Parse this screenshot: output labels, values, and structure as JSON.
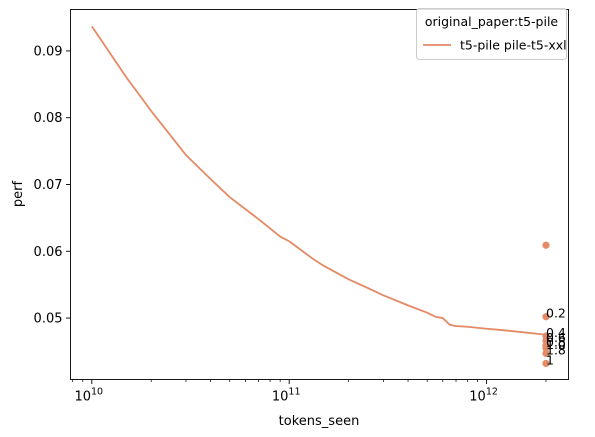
{
  "chart_data": {
    "type": "line",
    "xlabel": "tokens_seen",
    "ylabel": "perf",
    "x_scale": "log",
    "xlim": [
      7800000000.0,
      2600000000000.0
    ],
    "ylim": [
      0.0408,
      0.0962
    ],
    "x_ticks": [
      {
        "value": 10000000000.0,
        "label": "10",
        "exp": "10"
      },
      {
        "value": 100000000000.0,
        "label": "10",
        "exp": "11"
      },
      {
        "value": 1000000000000.0,
        "label": "10",
        "exp": "12"
      }
    ],
    "y_ticks": [
      {
        "value": 0.05,
        "label": "0.05"
      },
      {
        "value": 0.06,
        "label": "0.06"
      },
      {
        "value": 0.07,
        "label": "0.07"
      },
      {
        "value": 0.08,
        "label": "0.08"
      },
      {
        "value": 0.09,
        "label": "0.09"
      }
    ],
    "grid": false,
    "legend": {
      "title": "original_paper:t5-pile",
      "placement": "top-right",
      "entries": [
        {
          "name": "t5-pile pile-t5-xxl",
          "color": "#e48a65"
        }
      ]
    },
    "series": [
      {
        "name": "t5-pile pile-t5-xxl",
        "color": "#e48a65",
        "x": [
          10000000000.0,
          15000000000.0,
          20000000000.0,
          30000000000.0,
          40000000000.0,
          50000000000.0,
          70000000000.0,
          90000000000.0,
          100000000000.0,
          130000000000.0,
          150000000000.0,
          200000000000.0,
          250000000000.0,
          300000000000.0,
          400000000000.0,
          500000000000.0,
          550000000000.0,
          600000000000.0,
          650000000000.0,
          700000000000.0,
          800000000000.0,
          1000000000000.0,
          1200000000000.0,
          1500000000000.0,
          2000000000000.0
        ],
        "y": [
          0.0937,
          0.086,
          0.081,
          0.0744,
          0.0708,
          0.0681,
          0.0648,
          0.0622,
          0.0615,
          0.059,
          0.0578,
          0.0558,
          0.0545,
          0.0534,
          0.0519,
          0.0508,
          0.0502,
          0.05,
          0.049,
          0.0488,
          0.0487,
          0.0484,
          0.0482,
          0.0479,
          0.0475
        ]
      }
    ],
    "scatter": {
      "color": "#e48a65",
      "points": [
        {
          "x": 2000000000000.0,
          "y": 0.0609,
          "label": ""
        },
        {
          "x": 2000000000000.0,
          "y": 0.0502,
          "label": "0.2"
        },
        {
          "x": 2000000000000.0,
          "y": 0.0473,
          "label": "0.4"
        },
        {
          "x": 2000000000000.0,
          "y": 0.0466,
          "label": "0.6"
        },
        {
          "x": 2000000000000.0,
          "y": 0.0459,
          "label": "0.8"
        },
        {
          "x": 2000000000000.0,
          "y": 0.0455,
          "label": "1.0"
        },
        {
          "x": 2000000000000.0,
          "y": 0.0447,
          "label": "1.8"
        },
        {
          "x": 2000000000000.0,
          "y": 0.0432,
          "label": "1"
        }
      ]
    }
  }
}
